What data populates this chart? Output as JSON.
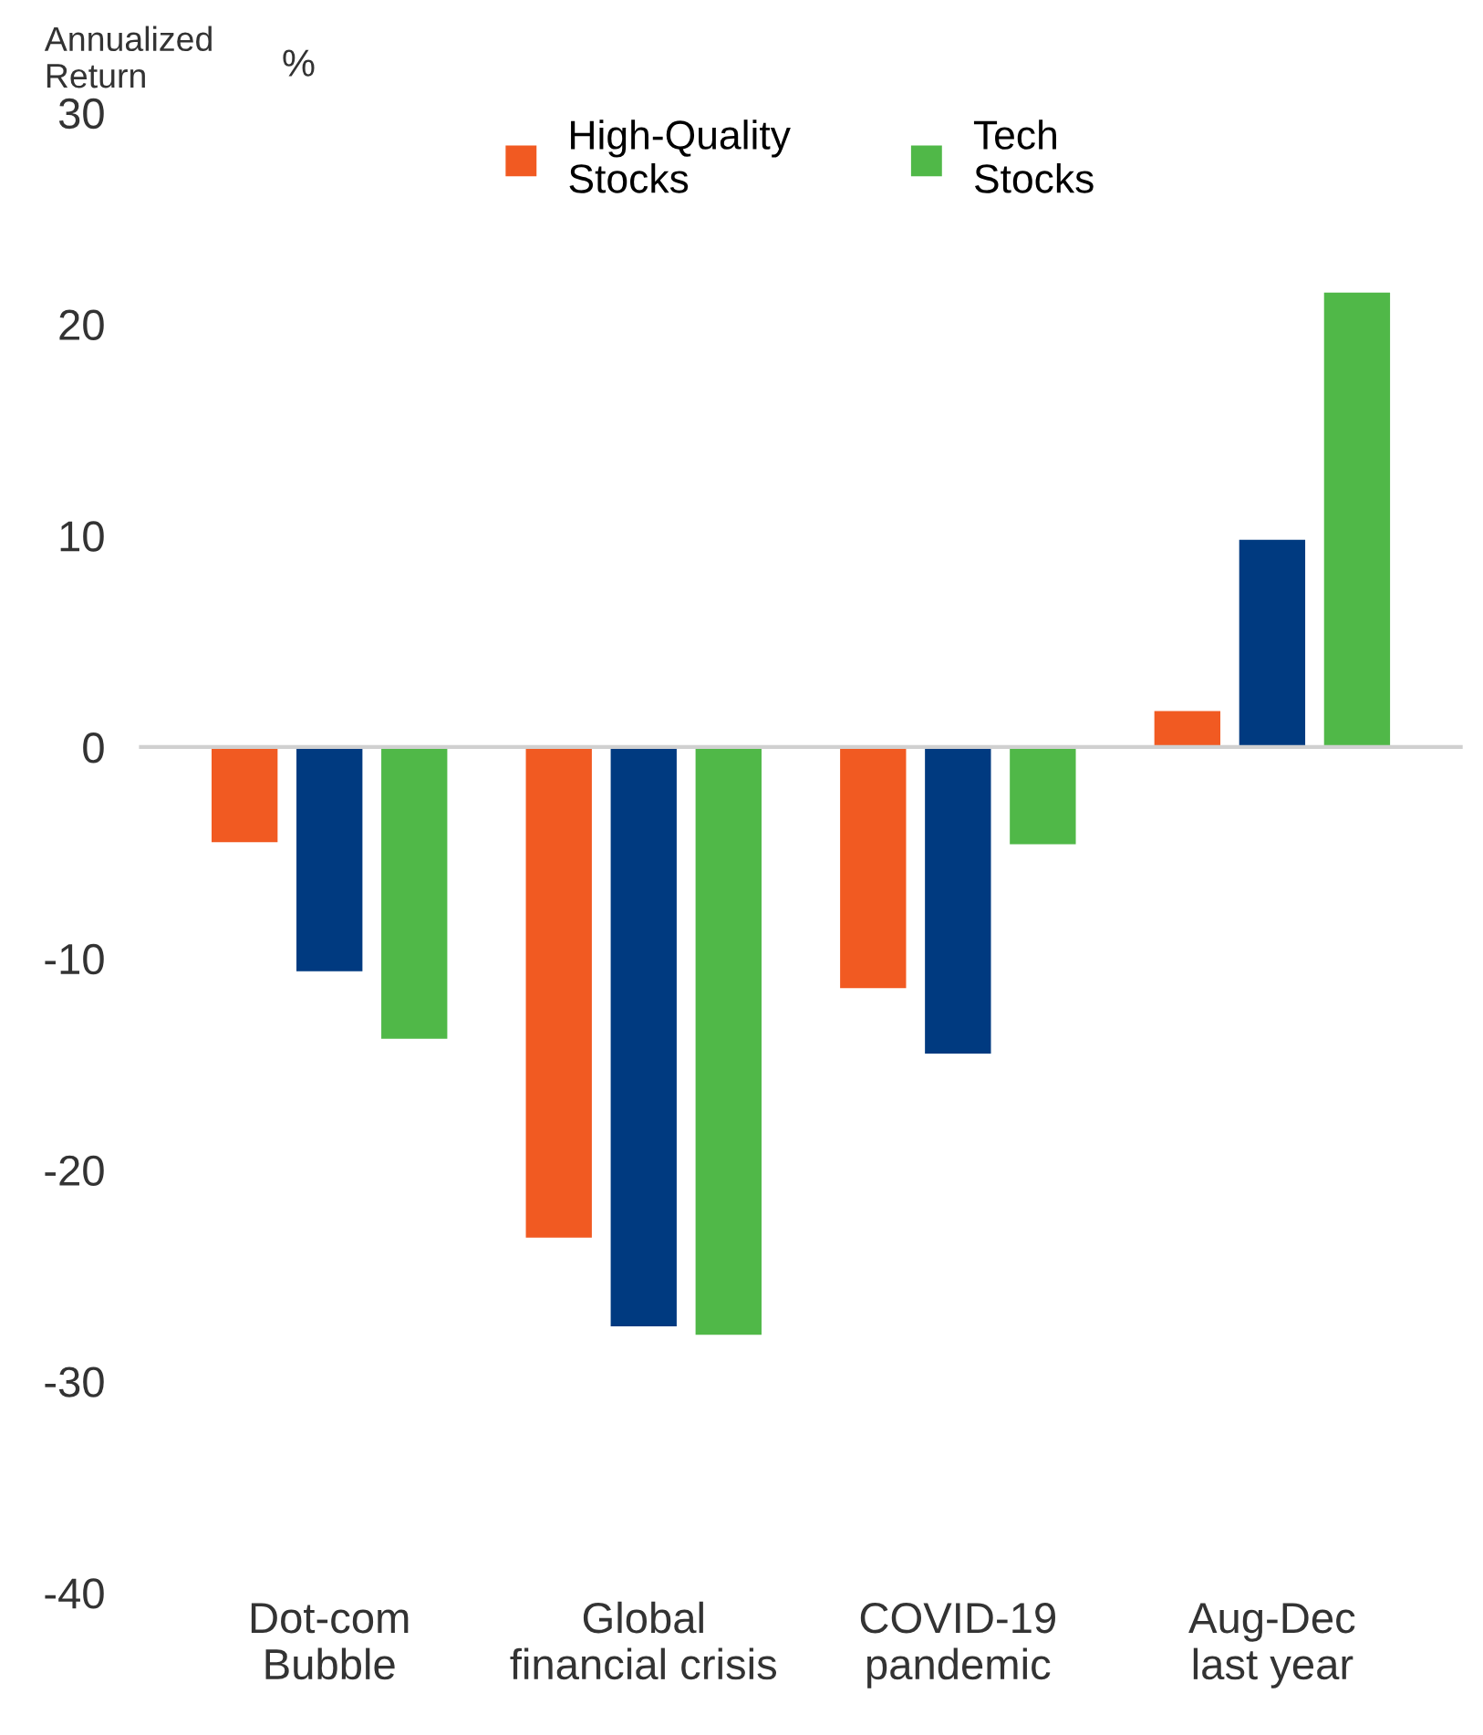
{
  "chart_data": {
    "type": "bar",
    "ylabel": "Annualized Return",
    "annotations": [
      "%"
    ],
    "categories": [
      "Dot-com Bubble",
      "Global financial crisis",
      "COVID-19 pandemic",
      "Aug-Dec last year"
    ],
    "series": [
      {
        "name": "High-Quality Stocks",
        "color": "#f15a22",
        "values": [
          -4.5,
          -23.2,
          -11.4,
          1.7
        ]
      },
      {
        "color": "#003a80",
        "values": [
          -10.6,
          -27.4,
          -14.5,
          9.8
        ]
      },
      {
        "name": "Tech Stocks",
        "color": "#50b848",
        "values": [
          -13.8,
          -27.8,
          -4.6,
          21.5
        ]
      }
    ],
    "ylim": [
      -40,
      30
    ],
    "yticks": [
      -40,
      -30,
      -20,
      -10,
      0,
      10,
      20,
      30
    ],
    "legend": "top"
  }
}
